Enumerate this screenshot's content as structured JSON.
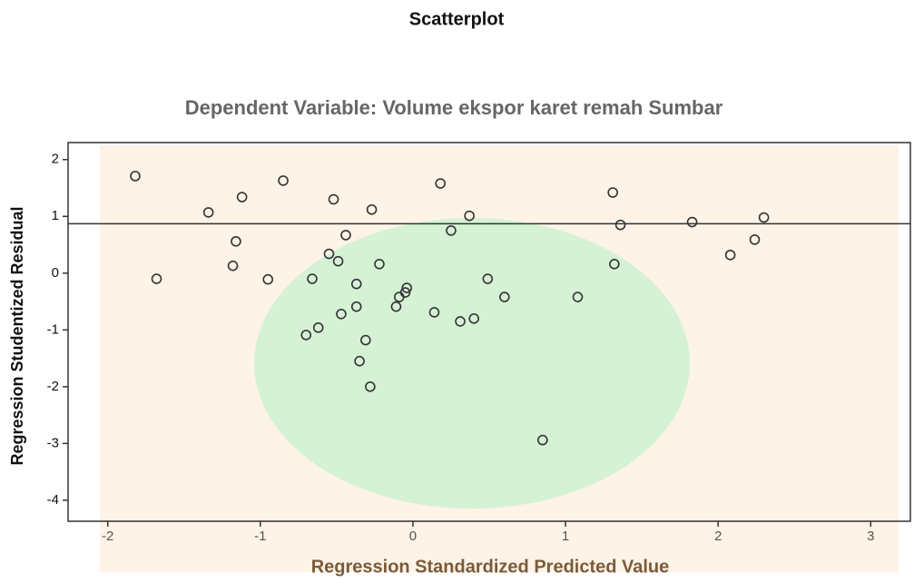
{
  "chart_data": {
    "type": "scatter",
    "title": "Scatterplot",
    "subtitle": "Dependent Variable: Volume ekspor karet remah Sumbar",
    "x_label": "Regression Standardized Predicted Value",
    "y_label": "Regression Studentized Residual",
    "x": [
      -1.82,
      -1.68,
      -1.34,
      -1.12,
      -1.16,
      -1.18,
      -0.95,
      -0.85,
      -0.66,
      -0.7,
      -0.62,
      -0.52,
      -0.55,
      -0.49,
      -0.44,
      -0.47,
      -0.37,
      -0.37,
      -0.27,
      -0.22,
      -0.31,
      -0.35,
      -0.28,
      -0.11,
      -0.09,
      -0.05,
      -0.04,
      0.14,
      0.18,
      0.25,
      0.31,
      0.4,
      0.37,
      0.49,
      0.6,
      0.85,
      1.08,
      1.31,
      1.32,
      1.36,
      1.83,
      2.08,
      2.24,
      2.3
    ],
    "values": [
      1.71,
      -0.1,
      1.07,
      1.34,
      0.56,
      0.13,
      -0.11,
      1.63,
      -0.1,
      -1.09,
      -0.96,
      1.3,
      0.34,
      0.21,
      0.67,
      -0.72,
      -0.59,
      -0.19,
      1.12,
      0.16,
      -1.18,
      -1.55,
      -2.0,
      -0.59,
      -0.42,
      -0.34,
      -0.26,
      -0.69,
      1.58,
      0.75,
      -0.85,
      -0.8,
      1.01,
      -0.1,
      -0.42,
      -2.94,
      -0.42,
      1.42,
      0.16,
      0.85,
      0.9,
      0.32,
      0.59,
      0.98
    ],
    "color": "#333333",
    "xlim": [
      -2.26,
      3.26
    ],
    "xticks": [
      -2,
      -1,
      0,
      1,
      2,
      3
    ],
    "ylim": [
      -4.37,
      2.3
    ],
    "yticks": [
      -4,
      -3,
      -2,
      -1,
      0,
      1,
      2
    ],
    "reference_line": 0.87
  }
}
